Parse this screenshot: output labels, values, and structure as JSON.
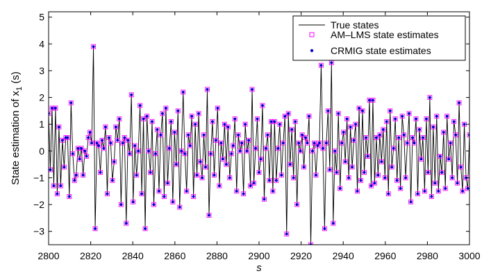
{
  "chart_data": {
    "type": "line",
    "xlabel": "s",
    "ylabel": "State estimation of x",
    "ylabel_sub": "1",
    "ylabel_suffix": " (s)",
    "xlim": [
      2800,
      3000
    ],
    "ylim": [
      -3.5,
      5.2
    ],
    "xticks": [
      2800,
      2820,
      2840,
      2860,
      2880,
      2900,
      2920,
      2940,
      2960,
      2980,
      3000
    ],
    "yticks": [
      -3,
      -2,
      -1,
      0,
      1,
      2,
      3,
      4,
      5
    ],
    "xtick_labels": [
      "2800",
      "2820",
      "2840",
      "2860",
      "2880",
      "2900",
      "2920",
      "2940",
      "2960",
      "2980",
      "3000"
    ],
    "ytick_labels": [
      "−3",
      "−2",
      "−1",
      "0",
      "1",
      "2",
      "3",
      "4",
      "5"
    ],
    "legend_position": "top-right",
    "colors": {
      "true": "#000000",
      "am": "#ff00ff",
      "crmig": "#0000cc"
    },
    "series": [
      {
        "name": "True states",
        "style": "line",
        "values": [
          1.4,
          -0.7,
          1.6,
          -1.3,
          1.6,
          -1.6,
          0.9,
          -1.3,
          0.4,
          -0.6,
          0.5,
          0.5,
          -1.7,
          1.8,
          -0.1,
          -1.1,
          -0.9,
          0.1,
          -0.3,
          0.1,
          -0.9,
          0.0,
          -0.2,
          0.5,
          0.7,
          0.3,
          3.9,
          -2.9,
          0.3,
          0.2,
          -0.8,
          0.4,
          0.1,
          0.9,
          -1.6,
          0.5,
          0.3,
          -1.1,
          -0.4,
          0.9,
          0.4,
          1.2,
          -2.0,
          0.3,
          0.5,
          -2.7,
          0.4,
          -0.1,
          2.1,
          -1.9,
          0.2,
          -0.9,
          0.0,
          1.7,
          -1.6,
          1.2,
          -2.9,
          1.3,
          0.0,
          -0.8,
          1.1,
          -2.0,
          -0.1,
          0.8,
          -1.5,
          0.6,
          1.4,
          -1.7,
          1.6,
          -1.2,
          0.1,
          1.1,
          -1.9,
          0.7,
          -0.5,
          1.5,
          -2.1,
          0.0,
          2.2,
          -0.1,
          -1.5,
          0.6,
          0.2,
          1.3,
          -1.7,
          1.0,
          -0.9,
          1.4,
          -0.4,
          -1.0,
          0.6,
          -0.6,
          2.3,
          -2.4,
          -0.1,
          1.1,
          -0.9,
          0.4,
          1.6,
          -1.3,
          0.3,
          -0.3,
          1.0,
          -0.5,
          0.9,
          -1.0,
          -0.1,
          0.2,
          1.2,
          -1.5,
          0.6,
          0.0,
          0.3,
          -1.6,
          1.0,
          0.0,
          0.4,
          -1.3,
          2.3,
          -1.2,
          0.1,
          1.2,
          -0.8,
          -0.3,
          1.7,
          -1.8,
          0.1,
          0.6,
          -1.1,
          1.1,
          -1.5,
          1.1,
          -1.1,
          0.1,
          1.0,
          -0.9,
          0.3,
          1.3,
          -3.1,
          1.4,
          -0.5,
          0.8,
          -1.0,
          1.1,
          -2.0,
          0.3,
          0.0,
          0.6,
          -0.6,
          0.5,
          0.3,
          1.3,
          -3.5,
          0.0,
          0.3,
          -0.9,
          0.2,
          0.3,
          3.2,
          0.1,
          -2.9,
          0.3,
          1.5,
          -0.7,
          3.3,
          -2.7,
          0.0,
          -0.8,
          1.4,
          -1.4,
          0.3,
          0.7,
          -0.4,
          1.2,
          -1.0,
          0.9,
          -0.6,
          0.4,
          1.0,
          -1.5,
          1.6,
          -1.1,
          1.5,
          -0.8,
          0.5,
          -0.2,
          1.9,
          -1.3,
          1.9,
          -1.2,
          0.5,
          -0.9,
          0.6,
          -0.4,
          0.8,
          -1.0,
          1.1,
          -1.6,
          1.5,
          -0.6,
          0.1,
          1.2,
          -1.1,
          0.5,
          -1.4,
          1.3,
          0.6,
          -1.0,
          0.3,
          1.4,
          -1.9,
          0.5,
          0.3,
          1.2,
          -1.6,
          0.8,
          -0.3,
          0.5,
          -1.5,
          1.2,
          -0.8,
          2.0,
          -1.7,
          0.9,
          -1.2,
          1.3,
          -1.5,
          -0.2,
          -0.8,
          0.7,
          -1.4,
          1.3,
          -0.3,
          0.3,
          -1.0,
          1.1,
          0.6,
          -1.2,
          1.8,
          -0.6,
          -1.5,
          1.0,
          -1.0,
          -1.4,
          0.6
        ]
      },
      {
        "name": "AM–LMS state estimates",
        "style": "marker-square",
        "values": [
          1.4,
          -0.7,
          1.6,
          -1.3,
          1.6,
          -1.6,
          0.9,
          -1.3,
          0.4,
          -0.6,
          0.5,
          0.5,
          -1.7,
          1.8,
          -0.1,
          -1.1,
          -0.9,
          0.1,
          -0.3,
          0.1,
          -0.9,
          0.0,
          -0.2,
          0.5,
          0.7,
          0.3,
          3.9,
          -2.9,
          0.3,
          0.2,
          -0.8,
          0.4,
          0.1,
          0.9,
          -1.6,
          0.5,
          0.3,
          -1.1,
          -0.4,
          0.9,
          0.4,
          1.2,
          -2.0,
          0.3,
          0.5,
          -2.7,
          0.4,
          -0.1,
          2.1,
          -1.9,
          0.2,
          -0.9,
          0.0,
          1.7,
          -1.6,
          1.2,
          -2.9,
          1.3,
          0.0,
          -0.8,
          1.1,
          -2.0,
          -0.1,
          0.8,
          -1.5,
          0.6,
          1.4,
          -1.7,
          1.6,
          -1.2,
          0.1,
          1.1,
          -1.9,
          0.7,
          -0.5,
          1.5,
          -2.1,
          0.0,
          2.2,
          -0.1,
          -1.5,
          0.6,
          0.2,
          1.3,
          -1.7,
          1.0,
          -0.9,
          1.4,
          -0.4,
          -1.0,
          0.6,
          -0.6,
          2.3,
          -2.4,
          -0.1,
          1.1,
          -0.9,
          0.4,
          1.6,
          -1.3,
          0.3,
          -0.3,
          1.0,
          -0.5,
          0.9,
          -1.0,
          -0.1,
          0.2,
          1.2,
          -1.5,
          0.6,
          0.0,
          0.3,
          -1.6,
          1.0,
          0.0,
          0.4,
          -1.3,
          2.3,
          -1.2,
          0.1,
          1.2,
          -0.8,
          -0.3,
          1.7,
          -1.8,
          0.1,
          0.6,
          -1.1,
          1.1,
          -1.5,
          1.1,
          -1.1,
          0.1,
          1.0,
          -0.9,
          0.3,
          1.3,
          -3.1,
          1.4,
          -0.5,
          0.8,
          -1.0,
          1.1,
          -2.0,
          0.3,
          0.0,
          0.6,
          -0.6,
          0.5,
          0.3,
          1.3,
          -3.5,
          0.0,
          0.3,
          -0.9,
          0.2,
          0.3,
          3.2,
          0.1,
          -2.9,
          0.3,
          1.5,
          -0.7,
          3.3,
          -2.7,
          0.0,
          -0.8,
          1.4,
          -1.4,
          0.3,
          0.7,
          -0.4,
          1.2,
          -1.0,
          0.9,
          -0.6,
          0.4,
          1.0,
          -1.5,
          1.6,
          -1.1,
          1.5,
          -0.8,
          0.5,
          -0.2,
          1.9,
          -1.3,
          1.9,
          -1.2,
          0.5,
          -0.9,
          0.6,
          -0.4,
          0.8,
          -1.0,
          1.1,
          -1.6,
          1.5,
          -0.6,
          0.1,
          1.2,
          -1.1,
          0.5,
          -1.4,
          1.3,
          0.6,
          -1.0,
          0.3,
          1.4,
          -1.9,
          0.5,
          0.3,
          1.2,
          -1.6,
          0.8,
          -0.3,
          0.5,
          -1.5,
          1.2,
          -0.8,
          2.0,
          -1.7,
          0.9,
          -1.2,
          1.3,
          -1.5,
          -0.2,
          -0.8,
          0.7,
          -1.4,
          1.3,
          -0.3,
          0.3,
          -1.0,
          1.1,
          0.6,
          -1.2,
          1.8,
          -0.6,
          -1.5,
          1.0,
          -1.0,
          -1.4,
          0.6
        ]
      },
      {
        "name": "CRMIG state estimates",
        "style": "marker-dot",
        "values": [
          1.4,
          -0.7,
          1.6,
          -1.3,
          1.6,
          -1.6,
          0.9,
          -1.3,
          0.4,
          -0.6,
          0.5,
          0.5,
          -1.7,
          1.8,
          -0.1,
          -1.1,
          -0.9,
          0.1,
          -0.3,
          0.1,
          -0.9,
          0.0,
          -0.2,
          0.5,
          0.7,
          0.3,
          3.9,
          -2.9,
          0.3,
          0.2,
          -0.8,
          0.4,
          0.1,
          0.9,
          -1.6,
          0.5,
          0.3,
          -1.1,
          -0.4,
          0.9,
          0.4,
          1.2,
          -2.0,
          0.3,
          0.5,
          -2.7,
          0.4,
          -0.1,
          2.1,
          -1.9,
          0.2,
          -0.9,
          0.0,
          1.7,
          -1.6,
          1.2,
          -2.9,
          1.3,
          0.0,
          -0.8,
          1.1,
          -2.0,
          -0.1,
          0.8,
          -1.5,
          0.6,
          1.4,
          -1.7,
          1.6,
          -1.2,
          0.1,
          1.1,
          -1.9,
          0.7,
          -0.5,
          1.5,
          -2.1,
          0.0,
          2.2,
          -0.1,
          -1.5,
          0.6,
          0.2,
          1.3,
          -1.7,
          1.0,
          -0.9,
          1.4,
          -0.4,
          -1.0,
          0.6,
          -0.6,
          2.3,
          -2.4,
          -0.1,
          1.1,
          -0.9,
          0.4,
          1.6,
          -1.3,
          0.3,
          -0.3,
          1.0,
          -0.5,
          0.9,
          -1.0,
          -0.1,
          0.2,
          1.2,
          -1.5,
          0.6,
          0.0,
          0.3,
          -1.6,
          1.0,
          0.0,
          0.4,
          -1.3,
          2.3,
          -1.2,
          0.1,
          1.2,
          -0.8,
          -0.3,
          1.7,
          -1.8,
          0.1,
          0.6,
          -1.1,
          1.1,
          -1.5,
          1.1,
          -1.1,
          0.1,
          1.0,
          -0.9,
          0.3,
          1.3,
          -3.1,
          1.4,
          -0.5,
          0.8,
          -1.0,
          1.1,
          -2.0,
          0.3,
          0.0,
          0.6,
          -0.6,
          0.5,
          0.3,
          1.3,
          -3.5,
          0.0,
          0.3,
          -0.9,
          0.2,
          0.3,
          3.2,
          0.1,
          -2.9,
          0.3,
          1.5,
          -0.7,
          3.3,
          -2.7,
          0.0,
          -0.8,
          1.4,
          -1.4,
          0.3,
          0.7,
          -0.4,
          1.2,
          -1.0,
          0.9,
          -0.6,
          0.4,
          1.0,
          -1.5,
          1.6,
          -1.1,
          1.5,
          -0.8,
          0.5,
          -0.2,
          1.9,
          -1.3,
          1.9,
          -1.2,
          0.5,
          -0.9,
          0.6,
          -0.4,
          0.8,
          -1.0,
          1.1,
          -1.6,
          1.5,
          -0.6,
          0.1,
          1.2,
          -1.1,
          0.5,
          -1.4,
          1.3,
          0.6,
          -1.0,
          0.3,
          1.4,
          -1.9,
          0.5,
          0.3,
          1.2,
          -1.6,
          0.8,
          -0.3,
          0.5,
          -1.5,
          1.2,
          -0.8,
          2.0,
          -1.7,
          0.9,
          -1.2,
          1.3,
          -1.5,
          -0.2,
          -0.8,
          0.7,
          -1.4,
          1.3,
          -0.3,
          0.3,
          -1.0,
          1.1,
          0.6,
          -1.2,
          1.8,
          -0.6,
          -1.5,
          1.0,
          -1.0,
          -1.4,
          0.6
        ]
      }
    ]
  }
}
